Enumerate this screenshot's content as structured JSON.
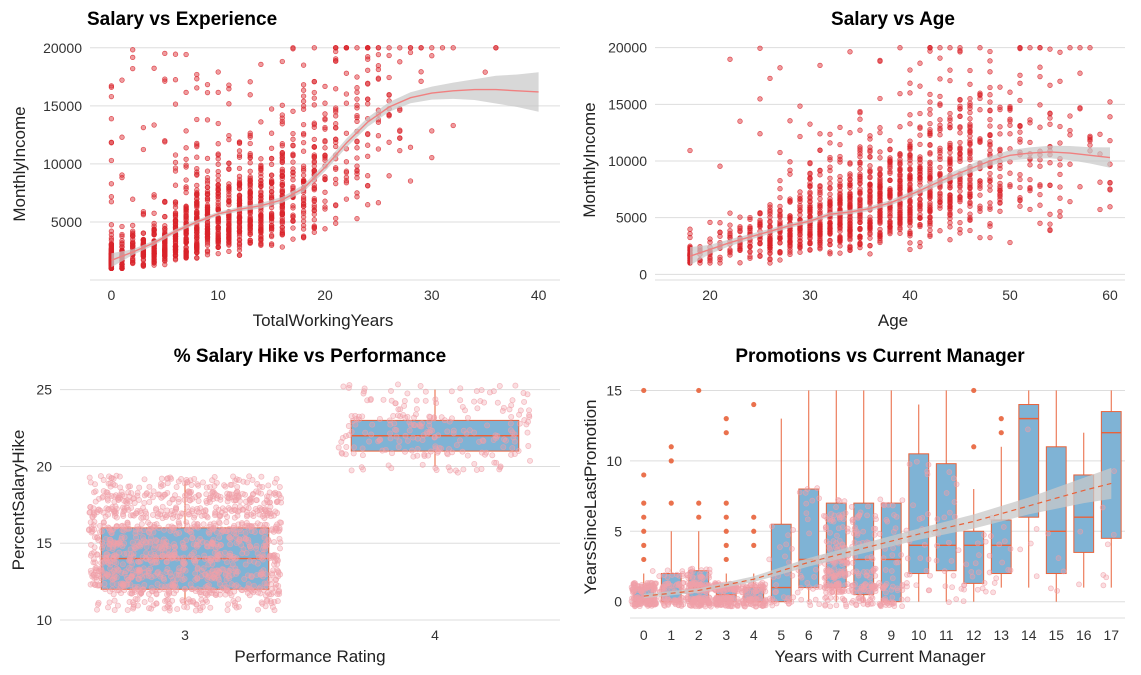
{
  "colors": {
    "point_red": "#d9232a",
    "smooth_line": "#f08080",
    "band": "#c8c8c8",
    "box_fill": "#7fb3d5",
    "box_line": "#e8623a",
    "jitter_pink": "#f0a0a8",
    "grid": "#dddddd"
  },
  "chart_data": [
    {
      "id": "salary-experience",
      "type": "scatter",
      "title": "Salary vs Experience",
      "xlabel": "TotalWorkingYears",
      "ylabel": "MonthlyIncome",
      "xlim": [
        -2,
        42
      ],
      "ylim": [
        0,
        20500
      ],
      "xticks": [
        0,
        10,
        20,
        30,
        40
      ],
      "yticks": [
        5000,
        10000,
        15000,
        20000
      ],
      "n_points": 1470,
      "point_model": {
        "x_range": [
          0,
          40
        ],
        "y_floor": 1000,
        "y_cap": 20000,
        "level_by_x": [
          [
            0,
            1700
          ],
          [
            5,
            3200
          ],
          [
            10,
            5400
          ],
          [
            15,
            6500
          ],
          [
            20,
            9500
          ],
          [
            22,
            12500
          ],
          [
            25,
            14500
          ],
          [
            30,
            16200
          ],
          [
            40,
            16000
          ]
        ]
      },
      "smooth": {
        "x": [
          0,
          2,
          4,
          6,
          8,
          10,
          12,
          14,
          16,
          18,
          20,
          22,
          24,
          26,
          28,
          30,
          32,
          34,
          36,
          38,
          40
        ],
        "y": [
          1700,
          2400,
          3200,
          4200,
          5000,
          5700,
          6100,
          6400,
          6900,
          7900,
          9700,
          11800,
          13600,
          14900,
          15700,
          16100,
          16300,
          16400,
          16400,
          16300,
          16200
        ],
        "se": [
          600,
          250,
          200,
          180,
          170,
          180,
          200,
          230,
          260,
          300,
          350,
          380,
          400,
          420,
          480,
          560,
          700,
          900,
          1200,
          1400,
          1700
        ]
      }
    },
    {
      "id": "salary-age",
      "type": "scatter",
      "title": "Salary vs Age",
      "xlabel": "Age",
      "ylabel": "MonthlyIncome",
      "xlim": [
        14.5,
        61.5
      ],
      "ylim": [
        -500,
        20500
      ],
      "xticks": [
        20,
        30,
        40,
        50,
        60
      ],
      "yticks": [
        0,
        5000,
        10000,
        15000,
        20000
      ],
      "n_points": 1470,
      "point_model": {
        "x_range": [
          18,
          60
        ],
        "y_floor": 1000,
        "y_cap": 20000,
        "level_by_x": [
          [
            18,
            1700
          ],
          [
            25,
            3300
          ],
          [
            30,
            4500
          ],
          [
            35,
            5700
          ],
          [
            40,
            7000
          ],
          [
            45,
            8600
          ],
          [
            50,
            10200
          ],
          [
            55,
            10600
          ],
          [
            60,
            10300
          ]
        ]
      },
      "smooth": {
        "x": [
          18,
          20,
          22,
          24,
          26,
          28,
          30,
          32,
          34,
          36,
          38,
          40,
          42,
          44,
          46,
          48,
          50,
          52,
          54,
          56,
          58,
          60
        ],
        "y": [
          1600,
          2200,
          2800,
          3300,
          3800,
          4300,
          4700,
          5300,
          5500,
          5800,
          6300,
          7000,
          7800,
          8600,
          9300,
          10000,
          10500,
          10700,
          10800,
          10700,
          10500,
          10300
        ],
        "se": [
          800,
          400,
          300,
          250,
          220,
          200,
          190,
          190,
          200,
          210,
          230,
          260,
          300,
          340,
          380,
          420,
          460,
          500,
          550,
          620,
          720,
          900
        ]
      }
    },
    {
      "id": "hike-performance",
      "type": "box",
      "title": "% Salary Hike vs Performance",
      "xlabel": "Performance Rating",
      "ylabel": "PercentSalaryHike",
      "categories": [
        "3",
        "4"
      ],
      "ylim": [
        10,
        25.5
      ],
      "yticks": [
        10,
        15,
        20,
        25
      ],
      "boxes": [
        {
          "q1": 12,
          "median": 14,
          "q3": 16,
          "min": 11,
          "max": 19,
          "n_jitter": 1200,
          "jitter_range": [
            11,
            19
          ]
        },
        {
          "q1": 21,
          "median": 22,
          "q3": 23,
          "min": 20,
          "max": 25,
          "n_jitter": 226,
          "jitter_range": [
            20,
            25
          ]
        }
      ]
    },
    {
      "id": "promotion-manager",
      "type": "box",
      "title": "Promotions vs Current Manager",
      "xlabel": "Years with Current Manager",
      "ylabel": "YearsSinceLastPromotion",
      "categories": [
        "0",
        "1",
        "2",
        "3",
        "4",
        "5",
        "6",
        "7",
        "8",
        "9",
        "10",
        "11",
        "12",
        "13",
        "14",
        "15",
        "16",
        "17"
      ],
      "ylim": [
        -1.3,
        15.6
      ],
      "yticks": [
        0,
        5,
        10,
        15
      ],
      "boxes": [
        {
          "q1": 0,
          "median": 0,
          "q3": 1,
          "min": 0,
          "max": 2,
          "n": 263,
          "outliers": [
            3,
            4,
            5,
            6,
            7,
            9,
            15
          ]
        },
        {
          "q1": 0,
          "median": 0,
          "q3": 2,
          "min": 0,
          "max": 5,
          "n": 76,
          "outliers": [
            7,
            10,
            11
          ]
        },
        {
          "q1": 0,
          "median": 1,
          "q3": 2.2,
          "min": 0,
          "max": 5,
          "n": 344,
          "outliers": [
            6,
            7,
            15
          ]
        },
        {
          "q1": 0,
          "median": 0.5,
          "q3": 1,
          "min": 0,
          "max": 2,
          "n": 142,
          "outliers": [
            3,
            4,
            5,
            6,
            7,
            12,
            13
          ]
        },
        {
          "q1": 0,
          "median": 0,
          "q3": 1,
          "min": 0,
          "max": 2,
          "n": 98,
          "outliers": [
            4,
            5,
            6,
            14
          ]
        },
        {
          "q1": 0,
          "median": 1,
          "q3": 5.5,
          "min": 0,
          "max": 13,
          "n": 31,
          "outliers": []
        },
        {
          "q1": 1,
          "median": 3,
          "q3": 8,
          "min": 0,
          "max": 15,
          "n": 29,
          "outliers": []
        },
        {
          "q1": 1,
          "median": 3,
          "q3": 7,
          "min": 0,
          "max": 15,
          "n": 216,
          "outliers": []
        },
        {
          "q1": 0.5,
          "median": 3,
          "q3": 7,
          "min": 0,
          "max": 15,
          "n": 107,
          "outliers": []
        },
        {
          "q1": 0,
          "median": 3,
          "q3": 7,
          "min": 0,
          "max": 15,
          "n": 64,
          "outliers": []
        },
        {
          "q1": 2,
          "median": 4,
          "q3": 10.5,
          "min": 0,
          "max": 14,
          "n": 27,
          "outliers": []
        },
        {
          "q1": 2.2,
          "median": 4,
          "q3": 9.8,
          "min": 0,
          "max": 15,
          "n": 22,
          "outliers": []
        },
        {
          "q1": 1.3,
          "median": 4,
          "q3": 5,
          "min": 0,
          "max": 8,
          "n": 18,
          "outliers": [
            11,
            15
          ]
        },
        {
          "q1": 2,
          "median": 4,
          "q3": 5.8,
          "min": 1,
          "max": 11,
          "n": 14,
          "outliers": [
            12,
            13
          ]
        },
        {
          "q1": 6,
          "median": 13,
          "q3": 14,
          "min": 1,
          "max": 15,
          "n": 5,
          "outliers": []
        },
        {
          "q1": 2,
          "median": 5,
          "q3": 11,
          "min": 0,
          "max": 15,
          "n": 5,
          "outliers": []
        },
        {
          "q1": 3.5,
          "median": 6,
          "q3": 9,
          "min": 1,
          "max": 12,
          "n": 2,
          "outliers": []
        },
        {
          "q1": 4.5,
          "median": 12,
          "q3": 13.5,
          "min": 1,
          "max": 15,
          "n": 7,
          "outliers": []
        }
      ],
      "smooth": {
        "x": [
          0,
          2,
          4,
          6,
          8,
          10,
          12,
          14,
          16,
          17
        ],
        "y": [
          0.4,
          0.8,
          1.6,
          2.8,
          3.8,
          4.8,
          5.7,
          6.8,
          7.9,
          8.4
        ],
        "se": [
          0.15,
          0.15,
          0.2,
          0.3,
          0.35,
          0.4,
          0.5,
          0.6,
          0.9,
          1.1
        ]
      }
    }
  ]
}
